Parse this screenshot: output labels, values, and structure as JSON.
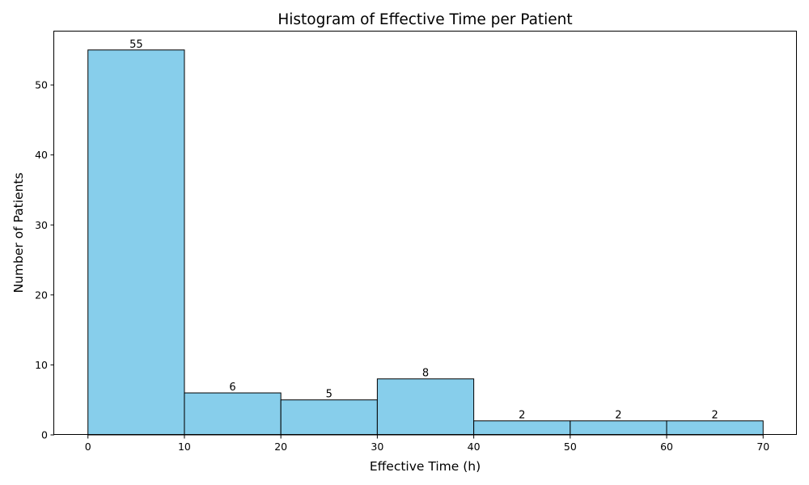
{
  "chart_data": {
    "type": "bar",
    "title": "Histogram of Effective Time per Patient",
    "xlabel": "Effective Time (h)",
    "ylabel": "Number of Patients",
    "bins": [
      {
        "start": 0,
        "end": 10,
        "count": 55
      },
      {
        "start": 10,
        "end": 20,
        "count": 6
      },
      {
        "start": 20,
        "end": 30,
        "count": 5
      },
      {
        "start": 30,
        "end": 40,
        "count": 8
      },
      {
        "start": 40,
        "end": 50,
        "count": 2
      },
      {
        "start": 50,
        "end": 60,
        "count": 2
      },
      {
        "start": 60,
        "end": 70,
        "count": 2
      }
    ],
    "xlim": [
      -3.5,
      73.5
    ],
    "ylim": [
      0,
      57.75
    ],
    "xticks": [
      0,
      10,
      20,
      30,
      40,
      50,
      60,
      70
    ],
    "yticks": [
      0,
      10,
      20,
      30,
      40,
      50
    ],
    "grid": false,
    "colors": {
      "bar_fill": "#87CEEB",
      "bar_edge": "#000000"
    }
  }
}
